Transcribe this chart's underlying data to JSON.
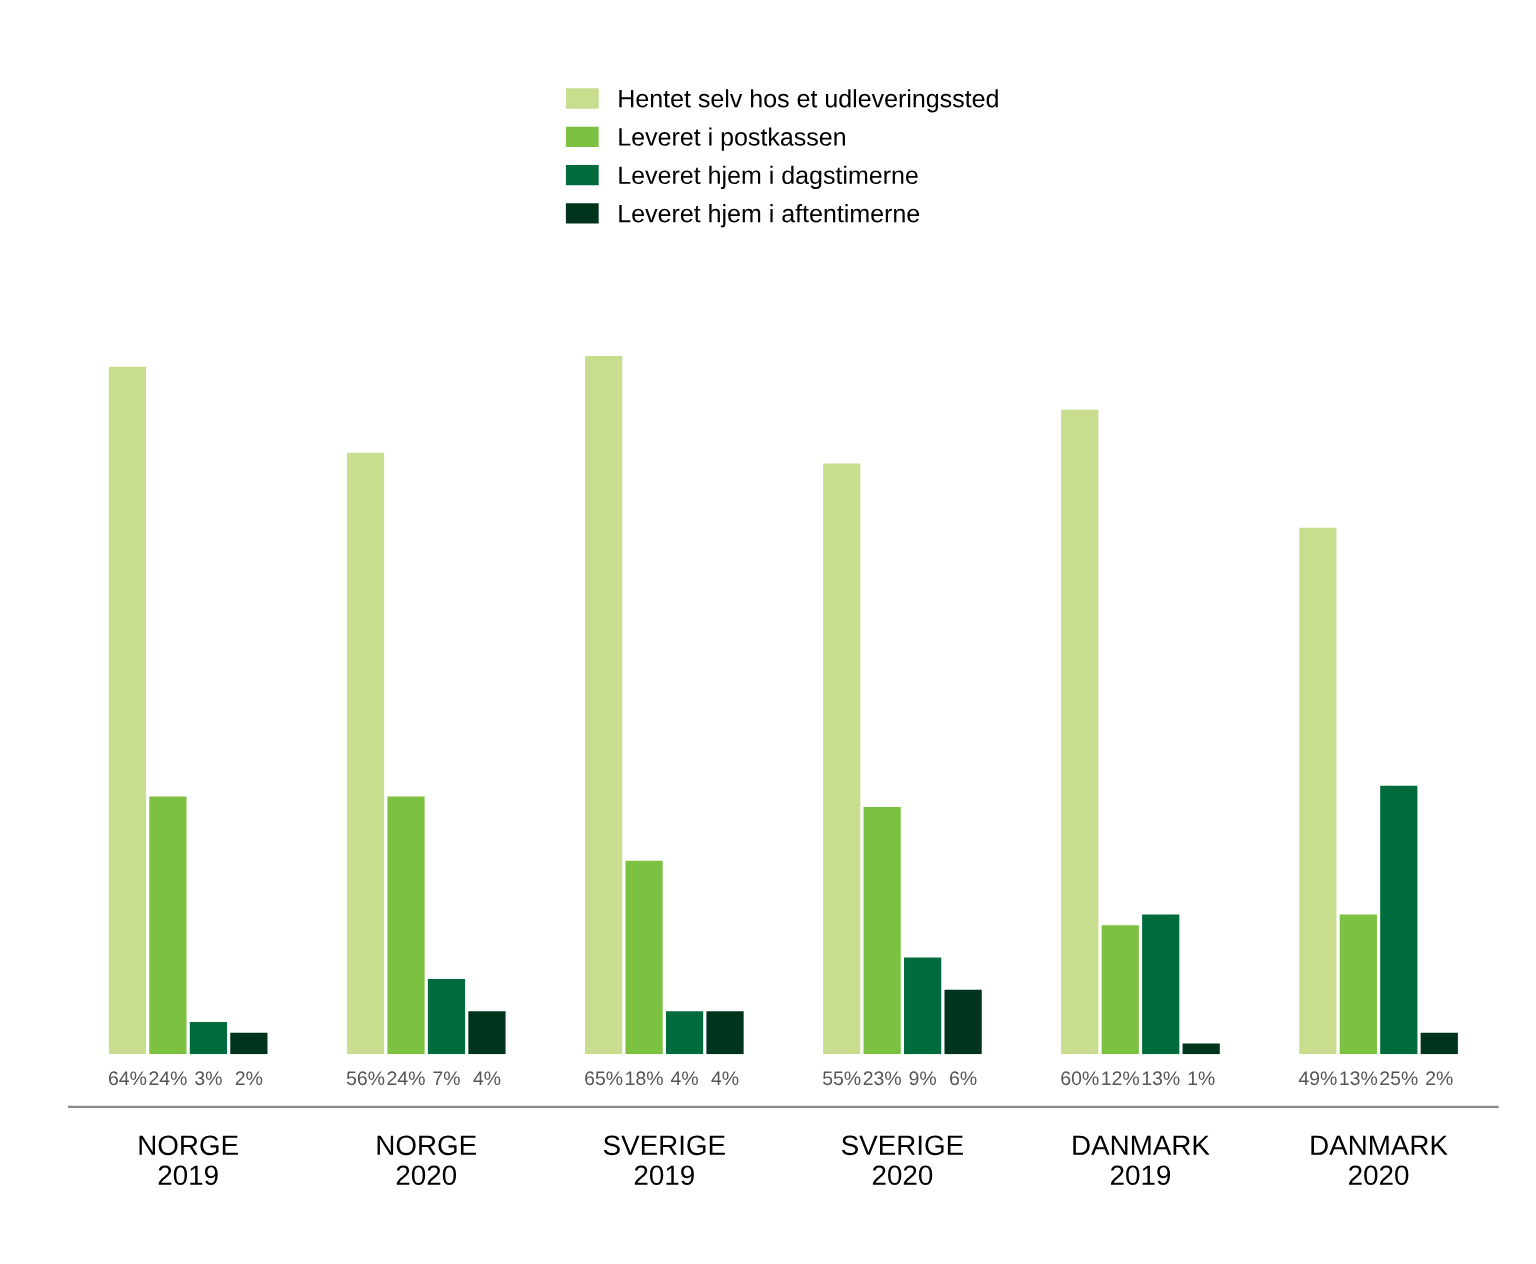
{
  "chart_data": {
    "type": "bar",
    "categories": [
      "NORGE\n2019",
      "NORGE\n2020",
      "SVERIGE\n2019",
      "SVERIGE\n2020",
      "DANMARK\n2019",
      "DANMARK\n2020"
    ],
    "series": [
      {
        "name": "Hentet selv hos et udleveringssted",
        "color": "#c8de8e",
        "values": [
          64,
          56,
          65,
          55,
          60,
          49
        ],
        "value_labels": [
          "64%",
          "56%",
          "65%",
          "55%",
          "60%",
          "49%"
        ]
      },
      {
        "name": "Leveret i postkassen",
        "color": "#7cc142",
        "values": [
          24,
          24,
          18,
          23,
          12,
          13
        ],
        "value_labels": [
          "24%",
          "24%",
          "18%",
          "23%",
          "12%",
          "13%"
        ]
      },
      {
        "name": "Leveret hjem i dagstimerne",
        "color": "#006b3c",
        "values": [
          3,
          7,
          4,
          9,
          13,
          25
        ],
        "value_labels": [
          "3%",
          "7%",
          "4%",
          "9%",
          "13%",
          "25%"
        ]
      },
      {
        "name": "Leveret hjem i aftentimerne",
        "color": "#00341c",
        "values": [
          2,
          4,
          4,
          6,
          1,
          2
        ],
        "value_labels": [
          "2%",
          "4%",
          "4%",
          "6%",
          "1%",
          "2%"
        ]
      }
    ],
    "legend": "top",
    "grid": false
  }
}
